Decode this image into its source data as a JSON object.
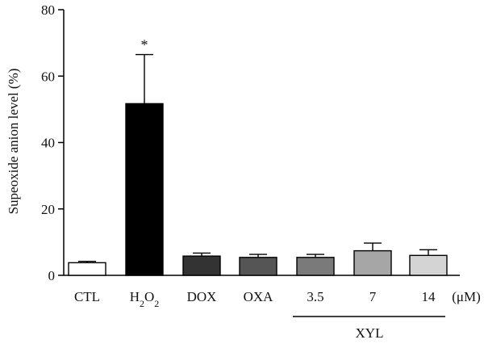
{
  "chart_data": {
    "type": "bar",
    "ylabel": "Supeoxide anion level (%)",
    "xlabel": "",
    "ylim": [
      0,
      80
    ],
    "yticks": [
      0,
      20,
      40,
      60,
      80
    ],
    "grid": false,
    "categories": [
      "CTL",
      "H2O2",
      "DOX",
      "OXA",
      "3.5",
      "7",
      "14"
    ],
    "values": [
      3.8,
      51.7,
      5.8,
      5.4,
      5.4,
      7.4,
      6.0
    ],
    "errors": [
      0.4,
      14.8,
      0.9,
      0.9,
      0.9,
      2.3,
      1.7
    ],
    "colors": [
      "#ffffff",
      "#000000",
      "#333333",
      "#555555",
      "#7a7a7a",
      "#a6a6a6",
      "#d4d4d4"
    ],
    "unit_label": "(μM)",
    "group_label": "XYL",
    "significance_marker": "*",
    "significance_category": "H2O2"
  }
}
